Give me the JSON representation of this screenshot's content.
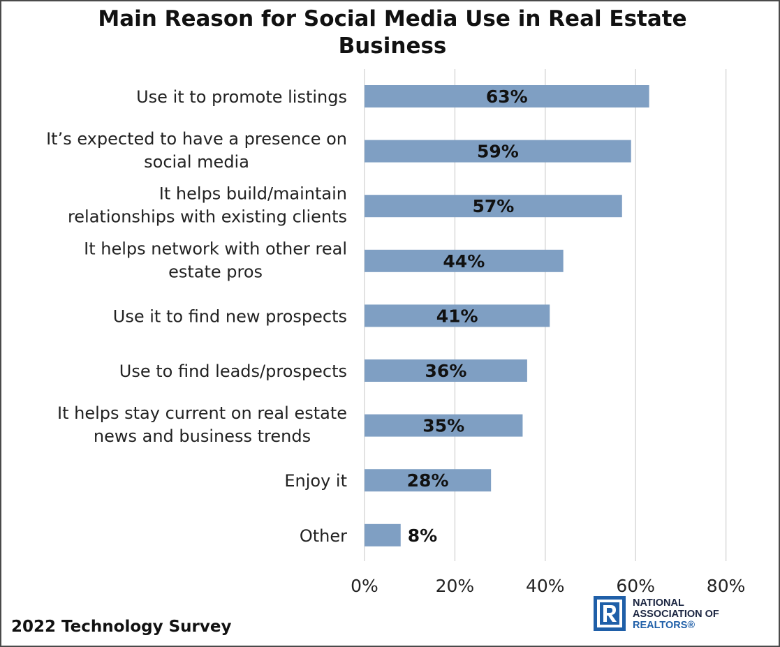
{
  "chart_data": {
    "type": "bar",
    "orientation": "horizontal",
    "title_lines": [
      "Main Reason for Social Media Use in Real Estate",
      "Business"
    ],
    "categories": [
      [
        "Use it to promote listings"
      ],
      [
        "It’s expected to have a presence on",
        "social media"
      ],
      [
        "It helps build/maintain",
        "relationships with existing clients"
      ],
      [
        "It helps network with other real",
        "estate pros"
      ],
      [
        "Use it to find new prospects"
      ],
      [
        "Use to find leads/prospects"
      ],
      [
        "It helps stay current on real estate",
        "news and business trends"
      ],
      [
        "Enjoy it"
      ],
      [
        "Other"
      ]
    ],
    "values": [
      63,
      59,
      57,
      44,
      41,
      36,
      35,
      28,
      8
    ],
    "data_labels": [
      "63%",
      "59%",
      "57%",
      "44%",
      "41%",
      "36%",
      "35%",
      "28%",
      "8%"
    ],
    "xlim": [
      0,
      80
    ],
    "x_ticks": [
      0,
      20,
      40,
      60,
      80
    ],
    "x_tick_labels": [
      "0%",
      "20%",
      "40%",
      "60%",
      "80%"
    ],
    "grid": "vertical",
    "bar_color": "#7f9fc3",
    "grid_color": "#d9d9d9"
  },
  "footer": {
    "survey": "2022 Technology Survey"
  },
  "logo": {
    "line1": "NATIONAL",
    "line2": "ASSOCIATION OF",
    "line3": "REALTORS®",
    "color_dark": "#1a2440",
    "color_blue": "#1f5fa8"
  }
}
